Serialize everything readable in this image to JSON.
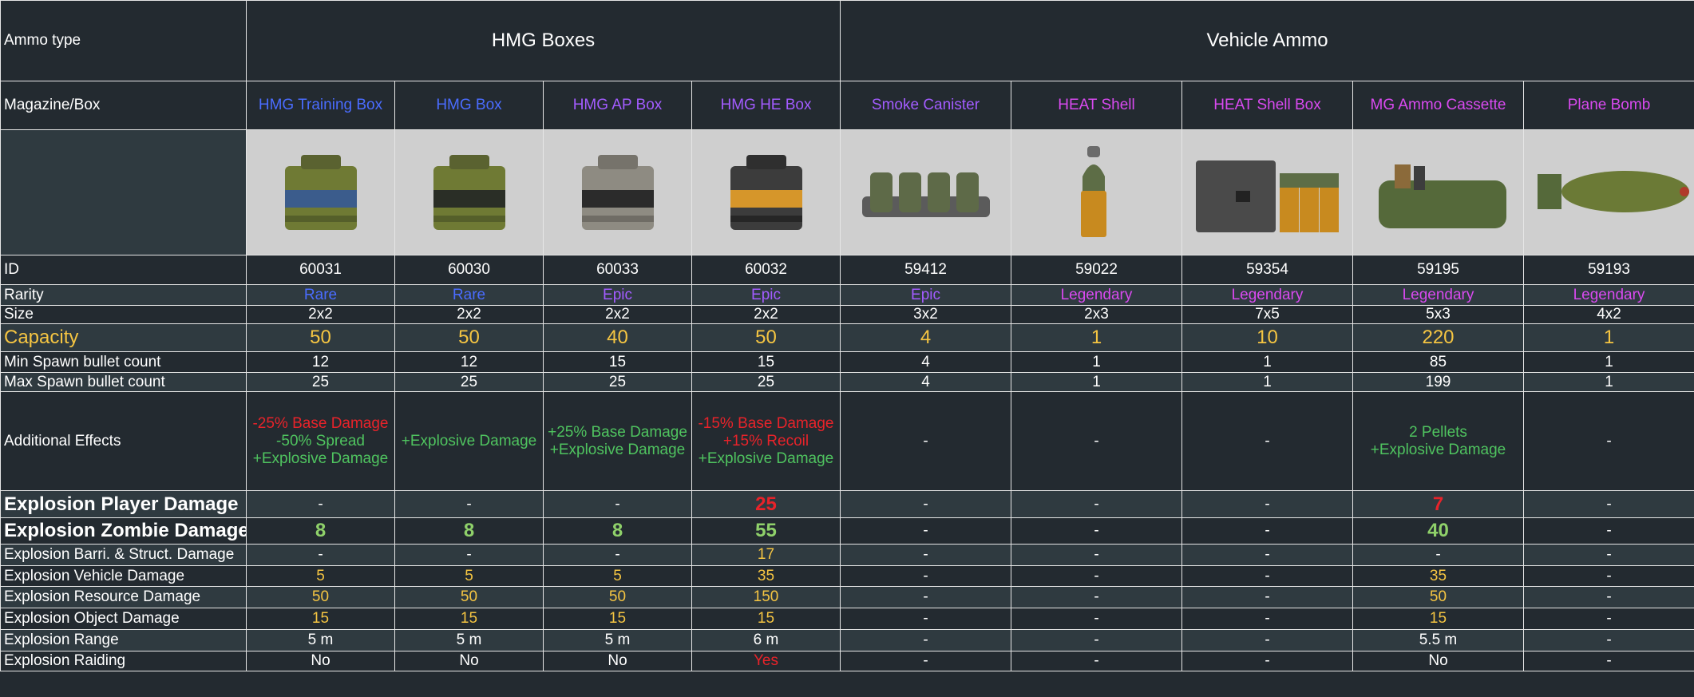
{
  "header": {
    "ammo_type_label": "Ammo type",
    "group1": "HMG Boxes",
    "group2": "Vehicle Ammo",
    "magazine_label": "Magazine/Box"
  },
  "columns": [
    {
      "name": "HMG Training Box",
      "color": "blue"
    },
    {
      "name": "HMG Box",
      "color": "blue"
    },
    {
      "name": "HMG AP Box",
      "color": "purple"
    },
    {
      "name": "HMG HE Box",
      "color": "purple"
    },
    {
      "name": "Smoke Canister",
      "color": "purple"
    },
    {
      "name": "HEAT Shell",
      "color": "magenta"
    },
    {
      "name": "HEAT Shell Box",
      "color": "magenta"
    },
    {
      "name": "MG Ammo Cassette",
      "color": "magenta"
    },
    {
      "name": "Plane Bomb",
      "color": "magenta"
    }
  ],
  "images": [
    "hmg-training-box-image",
    "hmg-box-image",
    "hmg-ap-box-image",
    "hmg-he-box-image",
    "smoke-canister-image",
    "heat-shell-image",
    "heat-shell-box-image",
    "mg-ammo-cassette-image",
    "plane-bomb-image"
  ],
  "rows": {
    "id": {
      "label": "ID",
      "values": [
        "60031",
        "60030",
        "60033",
        "60032",
        "59412",
        "59022",
        "59354",
        "59195",
        "59193"
      ]
    },
    "rarity": {
      "label": "Rarity",
      "values": [
        "Rare",
        "Rare",
        "Epic",
        "Epic",
        "Epic",
        "Legendary",
        "Legendary",
        "Legendary",
        "Legendary"
      ]
    },
    "size": {
      "label": "Size",
      "values": [
        "2x2",
        "2x2",
        "2x2",
        "2x2",
        "3x2",
        "2x3",
        "7x5",
        "5x3",
        "4x2"
      ]
    },
    "capacity": {
      "label": "Capacity",
      "values": [
        "50",
        "50",
        "40",
        "50",
        "4",
        "1",
        "10",
        "220",
        "1"
      ]
    },
    "min_spawn": {
      "label": "Min Spawn bullet count",
      "values": [
        "12",
        "12",
        "15",
        "15",
        "4",
        "1",
        "1",
        "85",
        "1"
      ]
    },
    "max_spawn": {
      "label": "Max Spawn bullet count",
      "values": [
        "25",
        "25",
        "25",
        "25",
        "4",
        "1",
        "1",
        "199",
        "1"
      ]
    },
    "effects": {
      "label": "Additional Effects",
      "values": [
        [
          {
            "text": "-25% Base Damage",
            "color": "red"
          },
          {
            "text": "-50% Spread",
            "color": "green"
          },
          {
            "text": "+Explosive Damage",
            "color": "green"
          }
        ],
        [
          {
            "text": "+Explosive Damage",
            "color": "green"
          }
        ],
        [
          {
            "text": "+25% Base Damage",
            "color": "green"
          },
          {
            "text": "+Explosive Damage",
            "color": "green"
          }
        ],
        [
          {
            "text": "-15% Base Damage",
            "color": "red"
          },
          {
            "text": "+15% Recoil",
            "color": "red"
          },
          {
            "text": "+Explosive Damage",
            "color": "green"
          }
        ],
        [
          {
            "text": "-",
            "color": "white"
          }
        ],
        [
          {
            "text": "-",
            "color": "white"
          }
        ],
        [
          {
            "text": "-",
            "color": "white"
          }
        ],
        [
          {
            "text": "2 Pellets",
            "color": "green"
          },
          {
            "text": "+Explosive Damage",
            "color": "green"
          }
        ],
        [
          {
            "text": "-",
            "color": "white"
          }
        ]
      ]
    },
    "exp_player": {
      "label": "Explosion Player Damage",
      "values": [
        "-",
        "-",
        "-",
        "25",
        "-",
        "-",
        "-",
        "7",
        "-"
      ]
    },
    "exp_zombie": {
      "label": "Explosion Zombie Damage",
      "values": [
        "8",
        "8",
        "8",
        "55",
        "-",
        "-",
        "-",
        "40",
        "-"
      ]
    },
    "exp_barri": {
      "label": "Explosion Barri. & Struct. Damage",
      "values": [
        "-",
        "-",
        "-",
        "17",
        "-",
        "-",
        "-",
        "-",
        "-"
      ]
    },
    "exp_vehicle": {
      "label": "Explosion Vehicle Damage",
      "values": [
        "5",
        "5",
        "5",
        "35",
        "-",
        "-",
        "-",
        "35",
        "-"
      ]
    },
    "exp_resource": {
      "label": "Explosion Resource Damage",
      "values": [
        "50",
        "50",
        "50",
        "150",
        "-",
        "-",
        "-",
        "50",
        "-"
      ]
    },
    "exp_object": {
      "label": "Explosion Object Damage",
      "values": [
        "15",
        "15",
        "15",
        "15",
        "-",
        "-",
        "-",
        "15",
        "-"
      ]
    },
    "exp_range": {
      "label": "Explosion Range",
      "values": [
        "5 m",
        "5 m",
        "5 m",
        "6 m",
        "-",
        "-",
        "-",
        "5.5 m",
        "-"
      ]
    },
    "exp_raiding": {
      "label": "Explosion Raiding",
      "values": [
        "No",
        "No",
        "No",
        "Yes",
        "-",
        "-",
        "-",
        "No",
        "-"
      ]
    }
  },
  "colors": {
    "background": "#232a30",
    "row_alt": "#2f3a40",
    "rare": "#4a6cff",
    "epic": "#a35cff",
    "legendary": "#d94af0",
    "capacity": "#f5c542",
    "positive": "#4fc35f",
    "negative": "#e8232a"
  }
}
